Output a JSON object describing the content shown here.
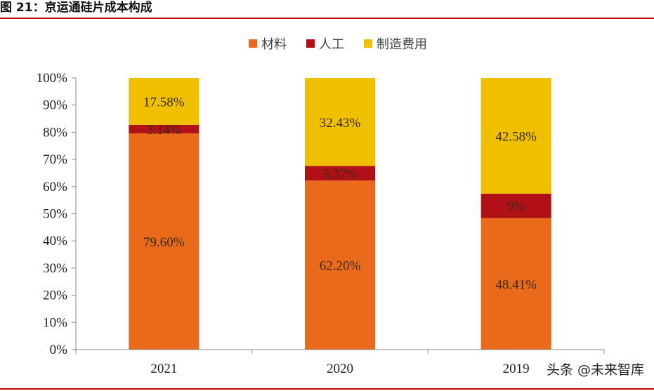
{
  "figure": {
    "title": "图 21：京运通硅片成本构成",
    "watermark": "头条 @未来智库"
  },
  "chart_data": {
    "type": "bar",
    "stacked": true,
    "categories": [
      "2021",
      "2020",
      "2019"
    ],
    "series": [
      {
        "name": "材料",
        "values": [
          79.6,
          62.2,
          48.41
        ],
        "labels": [
          "79.60%",
          "62.20%",
          "48.41%"
        ],
        "color": "#e86a1a"
      },
      {
        "name": "人工",
        "values": [
          3.14,
          5.37,
          9.0
        ],
        "labels": [
          "3.14%",
          "5.37%",
          "9%"
        ],
        "color": "#b11116"
      },
      {
        "name": "制造费用",
        "values": [
          17.58,
          32.43,
          42.58
        ],
        "labels": [
          "17.58%",
          "32.43%",
          "42.58%"
        ],
        "color": "#f0c000"
      }
    ],
    "ylim": [
      0,
      100
    ],
    "yticks": [
      "0%",
      "10%",
      "20%",
      "30%",
      "40%",
      "50%",
      "60%",
      "70%",
      "80%",
      "90%",
      "100%"
    ],
    "legend_position": "top-center",
    "grid": false
  }
}
